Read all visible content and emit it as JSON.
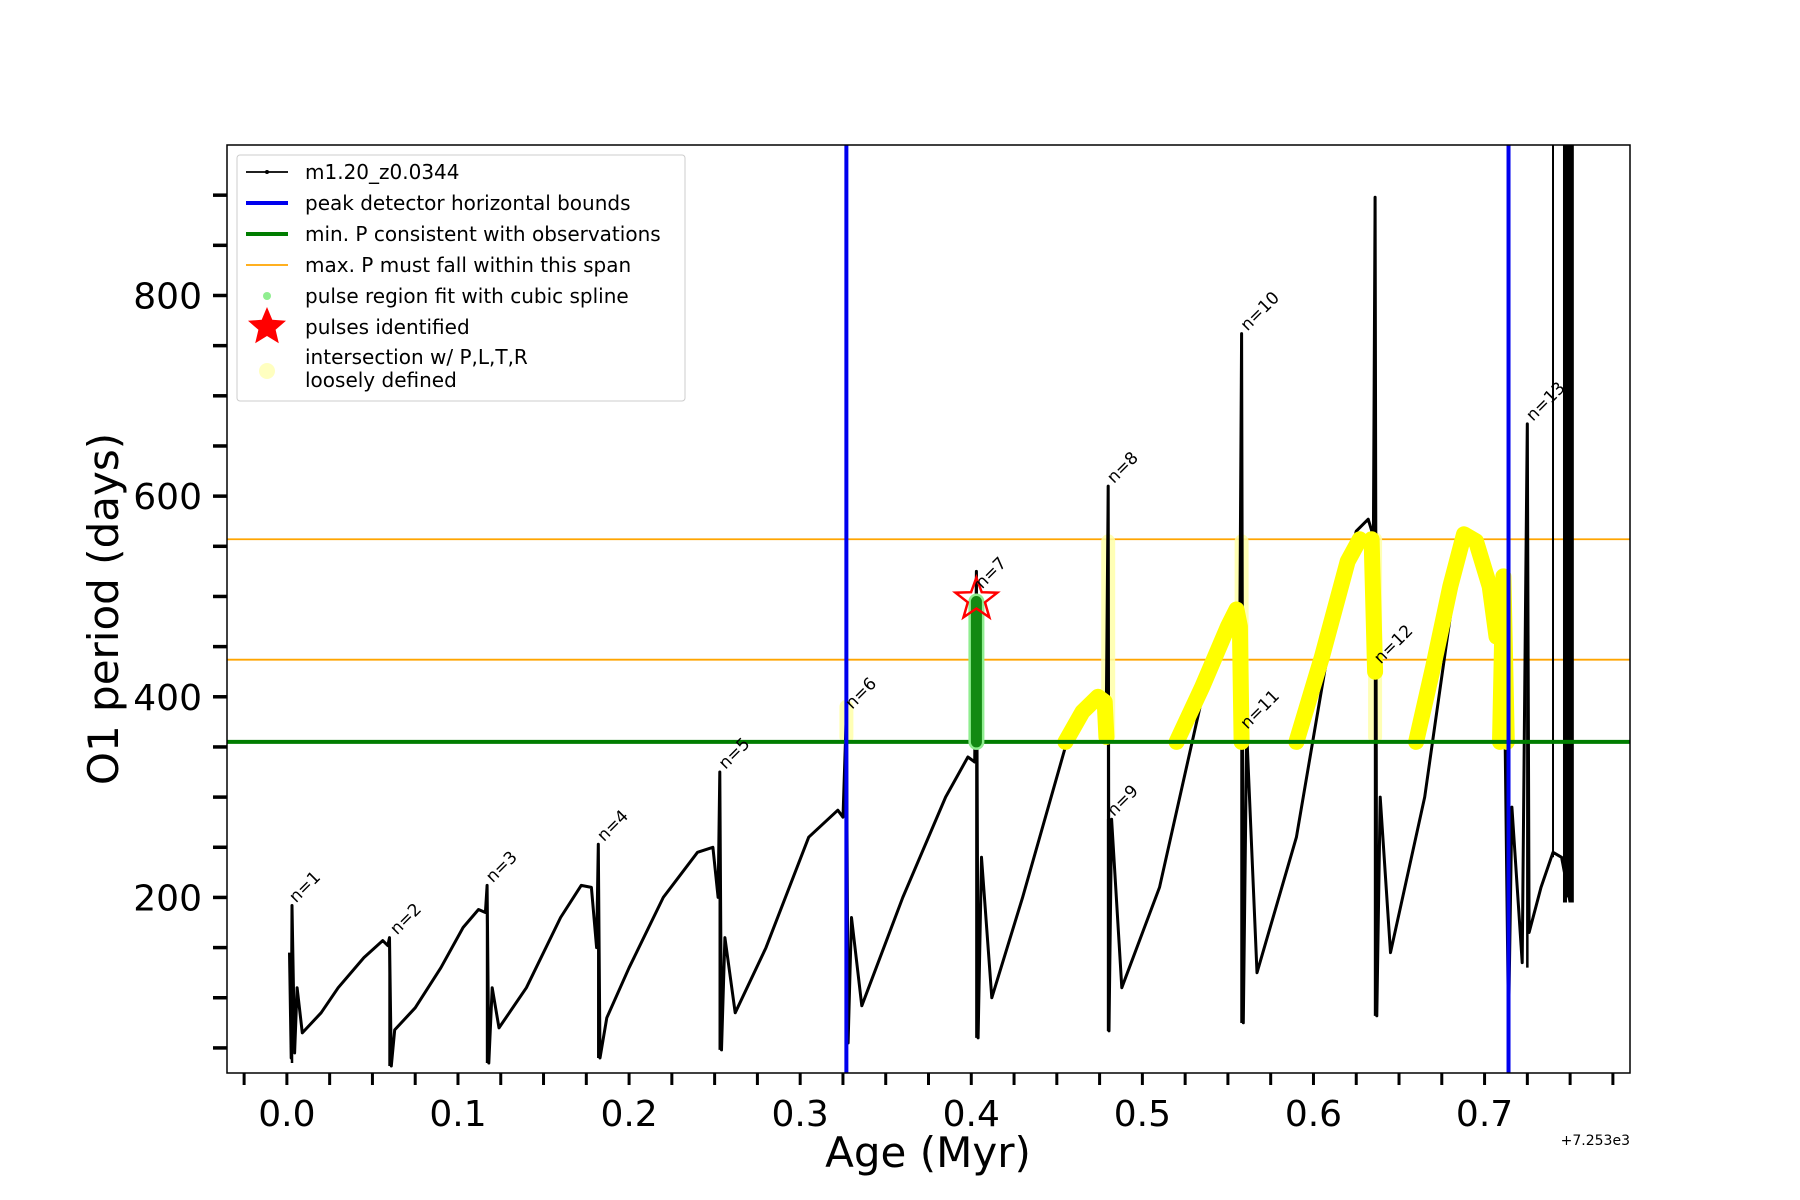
{
  "chart_data": {
    "type": "line",
    "xlabel": "Age (Myr)",
    "ylabel": "O1 period (days)",
    "x_offset_label": "+7.253e3",
    "xlim": [
      -0.035,
      0.785
    ],
    "ylim": [
      25,
      950
    ],
    "xticks": [
      {
        "value": 0.0,
        "label": "0.0"
      },
      {
        "value": 0.1,
        "label": "0.1"
      },
      {
        "value": 0.2,
        "label": "0.2"
      },
      {
        "value": 0.3,
        "label": "0.3"
      },
      {
        "value": 0.4,
        "label": "0.4"
      },
      {
        "value": 0.5,
        "label": "0.5"
      },
      {
        "value": 0.6,
        "label": "0.6"
      },
      {
        "value": 0.7,
        "label": "0.7"
      }
    ],
    "yticks": [
      {
        "value": 200,
        "label": "200"
      },
      {
        "value": 400,
        "label": "400"
      },
      {
        "value": 600,
        "label": "600"
      },
      {
        "value": 800,
        "label": "800"
      }
    ],
    "legend_position": "upper-left",
    "legend": [
      {
        "label": "m1.20_z0.0344",
        "kind": "track",
        "color": "#000000"
      },
      {
        "label": "peak detector horizontal bounds",
        "kind": "line",
        "color": "#0000ee"
      },
      {
        "label": "min. P consistent with observations",
        "kind": "line",
        "color": "#007d00"
      },
      {
        "label": "max. P must fall within this span",
        "kind": "thin-line",
        "color": "#ffa500"
      },
      {
        "label": "pulse region fit with cubic spline",
        "kind": "dot",
        "color": "#90ee90"
      },
      {
        "label": "pulses identified",
        "kind": "star",
        "color": "#ff0000"
      },
      {
        "label": "intersection w/ P,L,T,R",
        "label2": "loosely defined",
        "kind": "dot",
        "color": "#ffffc0"
      }
    ],
    "vlines": [
      0.327,
      0.714
    ],
    "min_period": 355,
    "max_period_span": [
      437,
      557
    ],
    "pulses": [
      {
        "label": "n=1",
        "age": 0.003,
        "spike": 192,
        "low": 35
      },
      {
        "label": "n=2",
        "age": 0.06,
        "spike": 160,
        "low": 32
      },
      {
        "label": "n=3",
        "age": 0.117,
        "spike": 212,
        "low": 35
      },
      {
        "label": "n=4",
        "age": 0.182,
        "spike": 253,
        "low": 40
      },
      {
        "label": "n=5",
        "age": 0.253,
        "spike": 325,
        "low": 48
      },
      {
        "label": "n=6",
        "age": 0.327,
        "spike": 385,
        "low": 55
      },
      {
        "label": "n=7",
        "age": 0.403,
        "spike": 525,
        "low": 60
      },
      {
        "label": "n=8",
        "age": 0.48,
        "spike": 610,
        "low": 67
      },
      {
        "label": "n=9",
        "age": 0.48,
        "spike": 278,
        "low": 67
      },
      {
        "label": "n=10",
        "age": 0.558,
        "spike": 762,
        "low": 75
      },
      {
        "label": "n=11",
        "age": 0.558,
        "spike": 365,
        "low": 75
      },
      {
        "label": "n=12",
        "age": 0.636,
        "spike": 898,
        "low": 82
      },
      {
        "label": "n=13",
        "age": 0.725,
        "spike": 672,
        "low": 130
      }
    ],
    "series": [
      {
        "name": "m1.20_z0.0344",
        "color": "#000000",
        "points": [
          [
            0.0015,
            145
          ],
          [
            0.0025,
            40
          ],
          [
            0.003,
            192
          ],
          [
            0.0045,
            45
          ],
          [
            0.006,
            110
          ],
          [
            0.009,
            65
          ],
          [
            0.02,
            85
          ],
          [
            0.03,
            110
          ],
          [
            0.045,
            140
          ],
          [
            0.056,
            157
          ],
          [
            0.059,
            152
          ],
          [
            0.06,
            160
          ],
          [
            0.061,
            32
          ],
          [
            0.063,
            68
          ],
          [
            0.075,
            90
          ],
          [
            0.09,
            130
          ],
          [
            0.103,
            170
          ],
          [
            0.112,
            188
          ],
          [
            0.116,
            185
          ],
          [
            0.117,
            212
          ],
          [
            0.118,
            35
          ],
          [
            0.12,
            110
          ],
          [
            0.124,
            70
          ],
          [
            0.14,
            110
          ],
          [
            0.16,
            180
          ],
          [
            0.172,
            212
          ],
          [
            0.178,
            210
          ],
          [
            0.181,
            150
          ],
          [
            0.182,
            253
          ],
          [
            0.183,
            40
          ],
          [
            0.187,
            80
          ],
          [
            0.2,
            130
          ],
          [
            0.22,
            200
          ],
          [
            0.24,
            245
          ],
          [
            0.249,
            250
          ],
          [
            0.252,
            200
          ],
          [
            0.253,
            325
          ],
          [
            0.254,
            48
          ],
          [
            0.256,
            160
          ],
          [
            0.262,
            85
          ],
          [
            0.28,
            150
          ],
          [
            0.305,
            260
          ],
          [
            0.322,
            287
          ],
          [
            0.325,
            280
          ],
          [
            0.327,
            385
          ],
          [
            0.328,
            55
          ],
          [
            0.33,
            180
          ],
          [
            0.336,
            92
          ],
          [
            0.36,
            200
          ],
          [
            0.385,
            300
          ],
          [
            0.398,
            340
          ],
          [
            0.402,
            335
          ],
          [
            0.403,
            525
          ],
          [
            0.404,
            60
          ],
          [
            0.406,
            240
          ],
          [
            0.412,
            100
          ],
          [
            0.43,
            200
          ],
          [
            0.455,
            350
          ],
          [
            0.47,
            392
          ],
          [
            0.476,
            400
          ],
          [
            0.479,
            395
          ],
          [
            0.48,
            610
          ],
          [
            0.4805,
            67
          ],
          [
            0.482,
            278
          ],
          [
            0.488,
            110
          ],
          [
            0.51,
            210
          ],
          [
            0.535,
            400
          ],
          [
            0.55,
            470
          ],
          [
            0.555,
            487
          ],
          [
            0.557,
            480
          ],
          [
            0.558,
            762
          ],
          [
            0.559,
            75
          ],
          [
            0.561,
            365
          ],
          [
            0.567,
            125
          ],
          [
            0.59,
            260
          ],
          [
            0.61,
            460
          ],
          [
            0.625,
            565
          ],
          [
            0.632,
            577
          ],
          [
            0.635,
            560
          ],
          [
            0.636,
            898
          ],
          [
            0.637,
            82
          ],
          [
            0.639,
            300
          ],
          [
            0.645,
            145
          ],
          [
            0.665,
            300
          ],
          [
            0.68,
            480
          ],
          [
            0.688,
            562
          ],
          [
            0.695,
            555
          ],
          [
            0.705,
            500
          ],
          [
            0.712,
            360
          ],
          [
            0.714,
            70
          ],
          [
            0.716,
            290
          ],
          [
            0.722,
            135
          ],
          [
            0.724,
            500
          ],
          [
            0.725,
            672
          ],
          [
            0.726,
            165
          ],
          [
            0.733,
            210
          ],
          [
            0.74,
            245
          ],
          [
            0.745,
            240
          ],
          [
            0.75,
            195
          ]
        ]
      }
    ],
    "yellow_segments": [
      [
        [
          0.455,
          355
        ],
        [
          0.465,
          385
        ],
        [
          0.474,
          400
        ],
        [
          0.478,
          395
        ],
        [
          0.479,
          360
        ]
      ],
      [
        [
          0.52,
          355
        ],
        [
          0.535,
          410
        ],
        [
          0.55,
          470
        ],
        [
          0.555,
          487
        ],
        [
          0.557,
          470
        ],
        [
          0.558,
          355
        ]
      ],
      [
        [
          0.59,
          355
        ],
        [
          0.605,
          440
        ],
        [
          0.62,
          535
        ],
        [
          0.627,
          557
        ]
      ],
      [
        [
          0.634,
          557
        ],
        [
          0.636,
          425
        ]
      ],
      [
        [
          0.66,
          355
        ],
        [
          0.67,
          430
        ],
        [
          0.68,
          510
        ],
        [
          0.688,
          562
        ],
        [
          0.695,
          555
        ],
        [
          0.703,
          510
        ],
        [
          0.707,
          460
        ]
      ],
      [
        [
          0.709,
          355
        ],
        [
          0.711,
          520
        ],
        [
          0.713,
          355
        ]
      ]
    ],
    "faint_yellow_segments": [
      [
        [
          0.327,
          360
        ],
        [
          0.327,
          390
        ]
      ],
      [
        [
          0.48,
          360
        ],
        [
          0.48,
          555
        ]
      ],
      [
        [
          0.558,
          360
        ],
        [
          0.558,
          555
        ]
      ],
      [
        [
          0.636,
          360
        ],
        [
          0.636,
          557
        ]
      ]
    ],
    "green_fit": [
      [
        0.403,
        355
      ],
      [
        0.403,
        495
      ]
    ],
    "star": {
      "age": 0.403,
      "period": 497
    }
  }
}
